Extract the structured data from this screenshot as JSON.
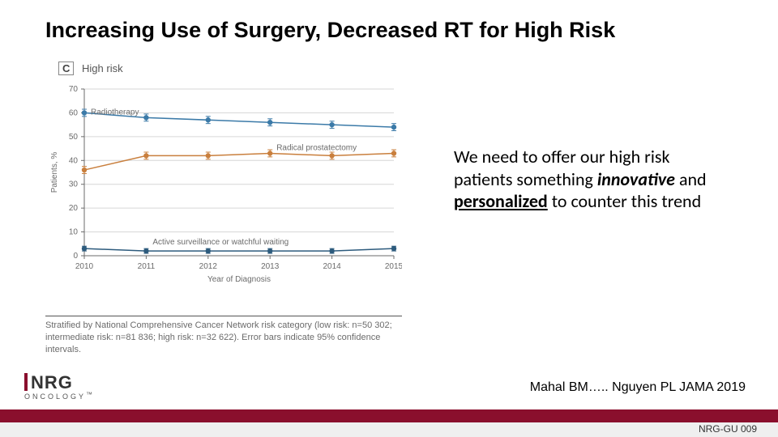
{
  "title": "Increasing Use of Surgery, Decreased RT for High Risk",
  "panel": {
    "letter": "C",
    "label": "High risk"
  },
  "chart": {
    "type": "line-markers",
    "xlabel": "Year of Diagnosis",
    "ylabel": "Patients, %",
    "categories": [
      "2010",
      "2011",
      "2012",
      "2013",
      "2014",
      "2015"
    ],
    "ylim": [
      0,
      70
    ],
    "ytick_step": 10,
    "series": [
      {
        "name": "Radiotherapy",
        "color": "#3b7aa8",
        "values": [
          60,
          58,
          57,
          56,
          55,
          54
        ],
        "err": [
          1.5,
          1.5,
          1.5,
          1.5,
          1.5,
          1.5
        ],
        "label_at": 0
      },
      {
        "name": "Radical prostatectomy",
        "color": "#c97f3d",
        "values": [
          36,
          42,
          42,
          43,
          42,
          43
        ],
        "err": [
          1.5,
          1.5,
          1.5,
          1.5,
          1.5,
          1.5
        ],
        "label_at": 3
      },
      {
        "name": "Active surveillance or watchful waiting",
        "color": "#2d5b7d",
        "values": [
          3,
          2,
          2,
          2,
          2,
          3
        ],
        "err": [
          1,
          1,
          1,
          1,
          1,
          1
        ],
        "label_at": 1
      }
    ],
    "grid_color": "#d6d6d6",
    "axis_color": "#6b6b6b",
    "marker_radius": 3.2,
    "line_width": 1.5,
    "background": "#ffffff"
  },
  "footnote": "Stratified by National Comprehensive Cancer Network risk category (low risk: n=50 302; intermediate risk: n=81 836; high risk: n=32 622). Error bars indicate 95% confidence intervals.",
  "callout": {
    "pre": "We need to offer our high risk patients something ",
    "em": "innovative",
    "mid": " and ",
    "uem": "personalized",
    "post": " to counter this trend"
  },
  "citation": "Mahal BM….. Nguyen PL  JAMA 2019",
  "logo": {
    "main": "NRG",
    "sub": "ONCOLOGY",
    "tm": "™",
    "bar_color": "#8a0f2d"
  },
  "protocol": "NRG-GU 009"
}
